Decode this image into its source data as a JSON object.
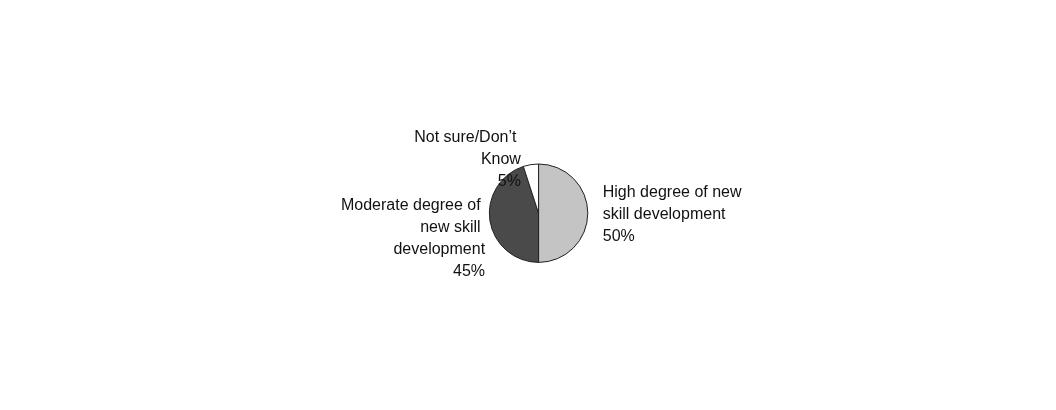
{
  "chart_data": {
    "type": "pie",
    "categories": [
      "High degree of new skill development",
      "Moderate degree of new skill development",
      "Not sure/Don’t Know"
    ],
    "values": [
      50,
      45,
      5
    ],
    "colors": [
      "#c4c4c4",
      "#4a4a4a",
      "#ffffff"
    ],
    "value_labels": [
      "50%",
      "45%",
      "5%"
    ],
    "legend": false
  }
}
